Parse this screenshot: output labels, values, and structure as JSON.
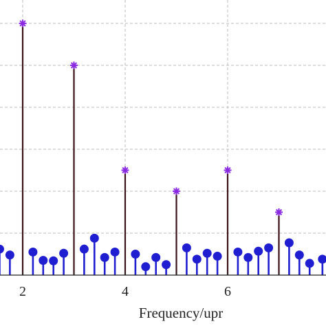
{
  "chart_data": {
    "type": "stem",
    "title": "",
    "xlabel": "Frequency/upr",
    "ylabel": "",
    "xlim": [
      1.55,
      7.95
    ],
    "ylim": [
      0,
      6.05
    ],
    "x_ticks": [
      2,
      4,
      6
    ],
    "grid": true,
    "colors": {
      "harmonic": "#3a1218",
      "harmonic_marker": "#8a2be2",
      "other": "#1f1fd1",
      "grid": "#bbbbbb",
      "axis": "#222222"
    },
    "series": [
      {
        "marker": "asterisk",
        "points": [
          {
            "x": 2,
            "y": 6.0
          },
          {
            "x": 3,
            "y": 5.0
          },
          {
            "x": 4,
            "y": 2.5
          },
          {
            "x": 5,
            "y": 2.0
          },
          {
            "x": 6,
            "y": 2.5
          },
          {
            "x": 7,
            "y": 1.5
          }
        ]
      },
      {
        "marker": "circle",
        "points": [
          {
            "x": 1.55,
            "y": 0.62
          },
          {
            "x": 1.75,
            "y": 0.48
          },
          {
            "x": 2.2,
            "y": 0.55
          },
          {
            "x": 2.4,
            "y": 0.35
          },
          {
            "x": 2.6,
            "y": 0.34
          },
          {
            "x": 2.8,
            "y": 0.52
          },
          {
            "x": 3.2,
            "y": 0.62
          },
          {
            "x": 3.4,
            "y": 0.88
          },
          {
            "x": 3.6,
            "y": 0.42
          },
          {
            "x": 3.8,
            "y": 0.55
          },
          {
            "x": 4.2,
            "y": 0.5
          },
          {
            "x": 4.4,
            "y": 0.2
          },
          {
            "x": 4.6,
            "y": 0.42
          },
          {
            "x": 4.8,
            "y": 0.25
          },
          {
            "x": 5.2,
            "y": 0.65
          },
          {
            "x": 5.4,
            "y": 0.38
          },
          {
            "x": 5.6,
            "y": 0.52
          },
          {
            "x": 5.8,
            "y": 0.45
          },
          {
            "x": 6.2,
            "y": 0.55
          },
          {
            "x": 6.4,
            "y": 0.42
          },
          {
            "x": 6.6,
            "y": 0.57
          },
          {
            "x": 6.8,
            "y": 0.65
          },
          {
            "x": 7.2,
            "y": 0.77
          },
          {
            "x": 7.4,
            "y": 0.48
          },
          {
            "x": 7.6,
            "y": 0.28
          },
          {
            "x": 7.85,
            "y": 0.38
          }
        ]
      }
    ]
  }
}
